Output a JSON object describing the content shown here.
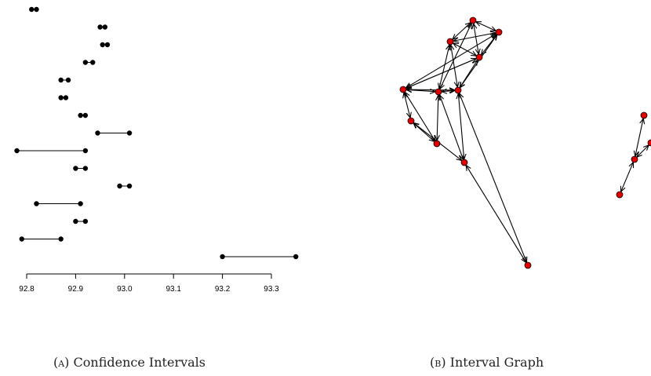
{
  "chart_data": [
    {
      "type": "interval",
      "xlim": [
        92.8,
        93.3
      ],
      "xticks": [
        "92.8",
        "92.9",
        "93.0",
        "93.1",
        "93.2",
        "93.3"
      ],
      "grid": false,
      "intervals": [
        [
          92.81,
          92.82
        ],
        [
          92.95,
          92.96
        ],
        [
          92.955,
          92.965
        ],
        [
          92.92,
          92.935
        ],
        [
          92.87,
          92.885
        ],
        [
          92.87,
          92.88
        ],
        [
          92.91,
          92.92
        ],
        [
          92.945,
          93.01
        ],
        [
          92.78,
          92.92
        ],
        [
          92.9,
          92.92
        ],
        [
          92.99,
          93.01
        ],
        [
          92.82,
          92.91
        ],
        [
          92.9,
          92.92
        ],
        [
          92.79,
          92.87
        ],
        [
          93.2,
          93.35
        ]
      ]
    },
    {
      "type": "graph",
      "node_color": "#e00000",
      "nodes": [
        {
          "id": "n1"
        },
        {
          "id": "n2"
        },
        {
          "id": "n3"
        },
        {
          "id": "n4"
        },
        {
          "id": "n5"
        },
        {
          "id": "n6"
        },
        {
          "id": "n7"
        },
        {
          "id": "n8"
        },
        {
          "id": "n9"
        },
        {
          "id": "n10"
        },
        {
          "id": "n11"
        },
        {
          "id": "n12"
        },
        {
          "id": "n13"
        },
        {
          "id": "n14"
        },
        {
          "id": "n15"
        }
      ],
      "edges": [
        [
          "n1",
          "n2"
        ],
        [
          "n1",
          "n3"
        ],
        [
          "n1",
          "n4"
        ],
        [
          "n1",
          "n5"
        ],
        [
          "n2",
          "n3"
        ],
        [
          "n2",
          "n4"
        ],
        [
          "n2",
          "n5"
        ],
        [
          "n2",
          "n6"
        ],
        [
          "n3",
          "n4"
        ],
        [
          "n3",
          "n6"
        ],
        [
          "n3",
          "n7"
        ],
        [
          "n4",
          "n6"
        ],
        [
          "n4",
          "n7"
        ],
        [
          "n5",
          "n6"
        ],
        [
          "n5",
          "n7"
        ],
        [
          "n5",
          "n9"
        ],
        [
          "n5",
          "n10"
        ],
        [
          "n6",
          "n7"
        ],
        [
          "n6",
          "n10"
        ],
        [
          "n6",
          "n11"
        ],
        [
          "n7",
          "n8"
        ],
        [
          "n7",
          "n9"
        ],
        [
          "n8",
          "n9"
        ],
        [
          "n8",
          "n10"
        ],
        [
          "n10",
          "n11"
        ],
        [
          "n12",
          "n13"
        ],
        [
          "n13",
          "n14"
        ],
        [
          "n13",
          "n15"
        ]
      ]
    }
  ],
  "captions": {
    "a_label": "(a)",
    "a_text": "Confidence Intervals",
    "b_label": "(b)",
    "b_text": "Interval Graph"
  }
}
